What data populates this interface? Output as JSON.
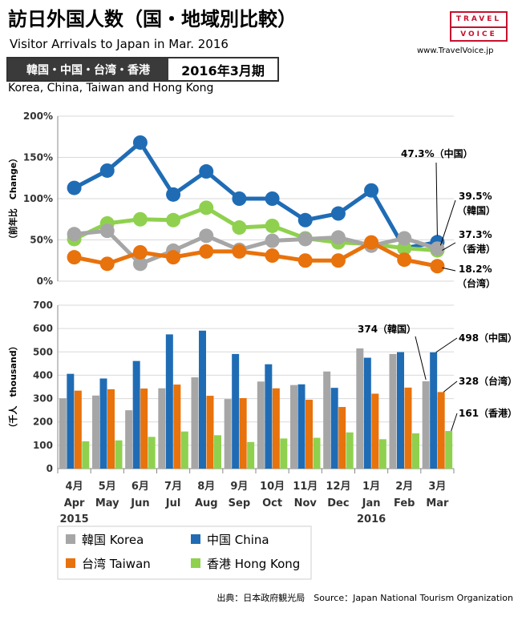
{
  "header": {
    "title": "訪日外国人数（国・地域別比較）",
    "subtitle": "Visitor Arrivals to Japan in Mar. 2016",
    "tag_regions": "韓国・中国・台湾・香港",
    "tag_period": "2016年3月期",
    "regions_en": "Korea, China, Taiwan and Hong Kong"
  },
  "logo": {
    "line1": "TRAVEL",
    "line2": "VOICE"
  },
  "site_url": "www.TravelVoice.jp",
  "source": "出典：日本政府観光局　Source：Japan  National Tourism  Organization",
  "colors": {
    "korea": "#a6a6a6",
    "china": "#1f6cb5",
    "taiwan": "#e8720c",
    "hongkong": "#8fd14f"
  },
  "chart_data": [
    {
      "type": "line",
      "ylabel": "（前年比　Change）",
      "ylim": [
        0,
        200
      ],
      "yticks": [
        "0%",
        "50%",
        "100%",
        "150%",
        "200%"
      ],
      "grid": "horizontal",
      "categories": [
        "4月 Apr",
        "5月 May",
        "6月 Jun",
        "7月 Jul",
        "8月 Aug",
        "9月 Sep",
        "10月 Oct",
        "11月 Nov",
        "12月 Dec",
        "1月 Jan",
        "2月 Feb",
        "3月 Mar"
      ],
      "series": [
        {
          "key": "china",
          "values": [
            113,
            134,
            168,
            105,
            133,
            100,
            100,
            74,
            82,
            110,
            40,
            47.3
          ]
        },
        {
          "key": "hongkong",
          "values": [
            51,
            70,
            75,
            74,
            89,
            65,
            67,
            52,
            47,
            45,
            40,
            37.3
          ]
        },
        {
          "key": "korea",
          "values": [
            57,
            61,
            21,
            37,
            55,
            38,
            49,
            51,
            53,
            43,
            52,
            39.5
          ]
        },
        {
          "key": "taiwan",
          "values": [
            29,
            21,
            35,
            29,
            36,
            36,
            31,
            25,
            25,
            47,
            26,
            18.2
          ]
        }
      ],
      "annotations": [
        {
          "key": "china",
          "text": "47.3%（中国）"
        },
        {
          "key": "korea",
          "text": "39.5%",
          "text2": "（韓国）"
        },
        {
          "key": "hongkong",
          "text": "37.3%",
          "text2": "（香港）"
        },
        {
          "key": "taiwan",
          "text": "18.2%",
          "text2": "（台湾）"
        }
      ]
    },
    {
      "type": "bar",
      "ylabel": "（千人　thousand）",
      "ylim": [
        0,
        700
      ],
      "yticks": [
        "0",
        "100",
        "200",
        "300",
        "400",
        "500",
        "600",
        "700"
      ],
      "grid": "horizontal",
      "categories": [
        {
          "jp": "4月",
          "en": "Apr",
          "year": "2015"
        },
        {
          "jp": "5月",
          "en": "May",
          "year": ""
        },
        {
          "jp": "6月",
          "en": "Jun",
          "year": ""
        },
        {
          "jp": "7月",
          "en": "Jul",
          "year": ""
        },
        {
          "jp": "8月",
          "en": "Aug",
          "year": ""
        },
        {
          "jp": "9月",
          "en": "Sep",
          "year": ""
        },
        {
          "jp": "10月",
          "en": "Oct",
          "year": ""
        },
        {
          "jp": "11月",
          "en": "Nov",
          "year": ""
        },
        {
          "jp": "12月",
          "en": "Dec",
          "year": ""
        },
        {
          "jp": "1月",
          "en": "Jan",
          "year": "2016"
        },
        {
          "jp": "2月",
          "en": "Feb",
          "year": ""
        },
        {
          "jp": "3月",
          "en": "Mar",
          "year": ""
        }
      ],
      "series": [
        {
          "key": "korea",
          "name": "韓国 Korea",
          "values": [
            301,
            313,
            250,
            344,
            391,
            298,
            373,
            358,
            416,
            515,
            491,
            374
          ]
        },
        {
          "key": "china",
          "name": "中国 China",
          "values": [
            406,
            386,
            461,
            575,
            591,
            491,
            447,
            361,
            346,
            475,
            499,
            498
          ]
        },
        {
          "key": "taiwan",
          "name": "台湾 Taiwan",
          "values": [
            334,
            340,
            343,
            360,
            312,
            302,
            344,
            295,
            264,
            321,
            347,
            328
          ]
        },
        {
          "key": "hongkong",
          "name": "香港 Hong Kong",
          "values": [
            117,
            121,
            136,
            159,
            143,
            114,
            129,
            132,
            155,
            126,
            151,
            161
          ]
        }
      ],
      "annotations": [
        {
          "key": "korea",
          "text": "374（韓国）"
        },
        {
          "key": "china",
          "text": "498（中国）"
        },
        {
          "key": "taiwan",
          "text": "328（台湾）"
        },
        {
          "key": "hongkong",
          "text": "161（香港）"
        }
      ]
    }
  ]
}
